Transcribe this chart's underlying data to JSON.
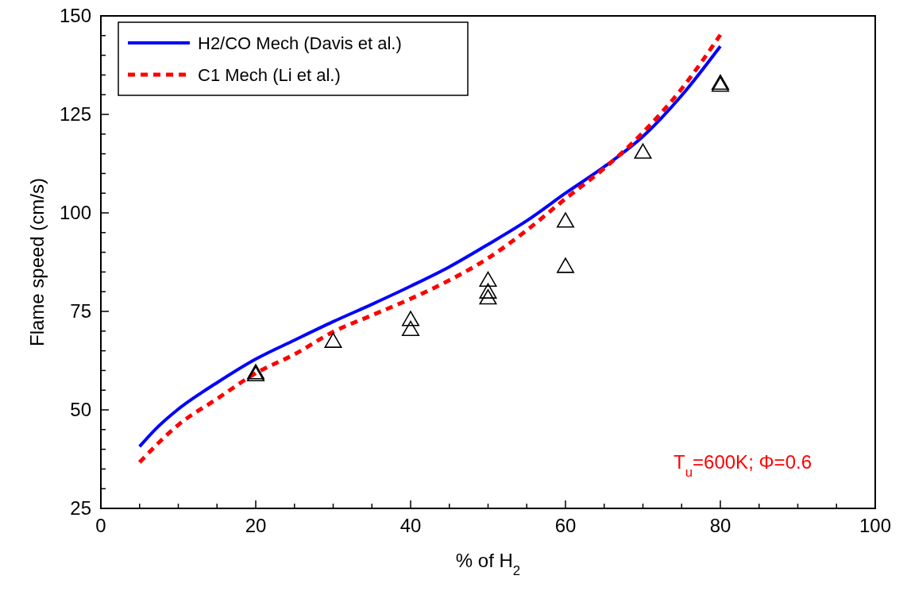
{
  "chart_data": {
    "type": "line",
    "xlabel": "% of H$_{2}$",
    "ylabel": "Flame speed (cm/s)",
    "xlim": [
      0,
      100
    ],
    "ylim": [
      25,
      150
    ],
    "xticks": [
      0,
      {
        "value": 5,
        "label": null
      },
      {
        "value": 10,
        "label": null
      },
      {
        "value": 15,
        "label": null
      },
      20,
      {
        "value": 25,
        "label": null
      },
      {
        "value": 30,
        "label": null
      },
      {
        "value": 35,
        "label": null
      },
      40,
      {
        "value": 45,
        "label": null
      },
      {
        "value": 50,
        "label": null
      },
      {
        "value": 55,
        "label": null
      },
      60,
      {
        "value": 65,
        "label": null
      },
      {
        "value": 70,
        "label": null
      },
      {
        "value": 75,
        "label": null
      },
      80,
      {
        "value": 85,
        "label": null
      },
      {
        "value": 90,
        "label": null
      },
      {
        "value": 95,
        "label": null
      },
      100
    ],
    "yticks": [
      25,
      {
        "value": 30,
        "label": null
      },
      {
        "value": 35,
        "label": null
      },
      {
        "value": 40,
        "label": null
      },
      {
        "value": 45,
        "label": null
      },
      50,
      {
        "value": 55,
        "label": null
      },
      {
        "value": 60,
        "label": null
      },
      {
        "value": 65,
        "label": null
      },
      {
        "value": 70,
        "label": null
      },
      75,
      {
        "value": 80,
        "label": null
      },
      {
        "value": 85,
        "label": null
      },
      {
        "value": 90,
        "label": null
      },
      {
        "value": 95,
        "label": null
      },
      100,
      {
        "value": 105,
        "label": null
      },
      {
        "value": 110,
        "label": null
      },
      {
        "value": 115,
        "label": null
      },
      {
        "value": 120,
        "label": null
      },
      125,
      {
        "value": 130,
        "label": null
      },
      {
        "value": 135,
        "label": null
      },
      {
        "value": 140,
        "label": null
      },
      {
        "value": 145,
        "label": null
      },
      150
    ],
    "grid": false,
    "legend": "top left",
    "annotations": [
      "T$_{u}$=600K; Φ=0.6"
    ],
    "series": [
      {
        "name": "H2/CO Mech (Davis et al.)",
        "line_style": "solid",
        "color": "#0000ff",
        "x": [
          5,
          7,
          10,
          15,
          20,
          25,
          30,
          35,
          40,
          45,
          50,
          55,
          60,
          65,
          70,
          75,
          80
        ],
        "values": [
          40.7,
          45,
          50.2,
          56.9,
          62.9,
          67.7,
          72.4,
          76.8,
          81.4,
          86.3,
          92,
          98,
          105,
          111.7,
          119.4,
          129.8,
          142.3
        ]
      },
      {
        "name": "C1 Mech (Li et al.)",
        "line_style": "dashed",
        "color": "#ff0000",
        "x": [
          5,
          10,
          15,
          20,
          25,
          30,
          35,
          40,
          45,
          50,
          55,
          60,
          65,
          70,
          75,
          80
        ],
        "values": [
          36.7,
          46.2,
          52.8,
          59.3,
          64.1,
          69.8,
          74,
          78.2,
          82.9,
          88.5,
          95.6,
          103.6,
          111.3,
          120.4,
          131.5,
          145.2
        ]
      },
      {
        "type": "scatter",
        "marker": "triangle",
        "color": "#000000",
        "x": [
          20,
          20,
          30,
          40,
          40,
          50,
          50,
          50,
          60,
          60,
          70,
          80,
          80
        ],
        "values": [
          59.5,
          59,
          67.5,
          73,
          70.5,
          83,
          80,
          78.5,
          98,
          86.5,
          115.5,
          133,
          132.5
        ]
      }
    ]
  }
}
